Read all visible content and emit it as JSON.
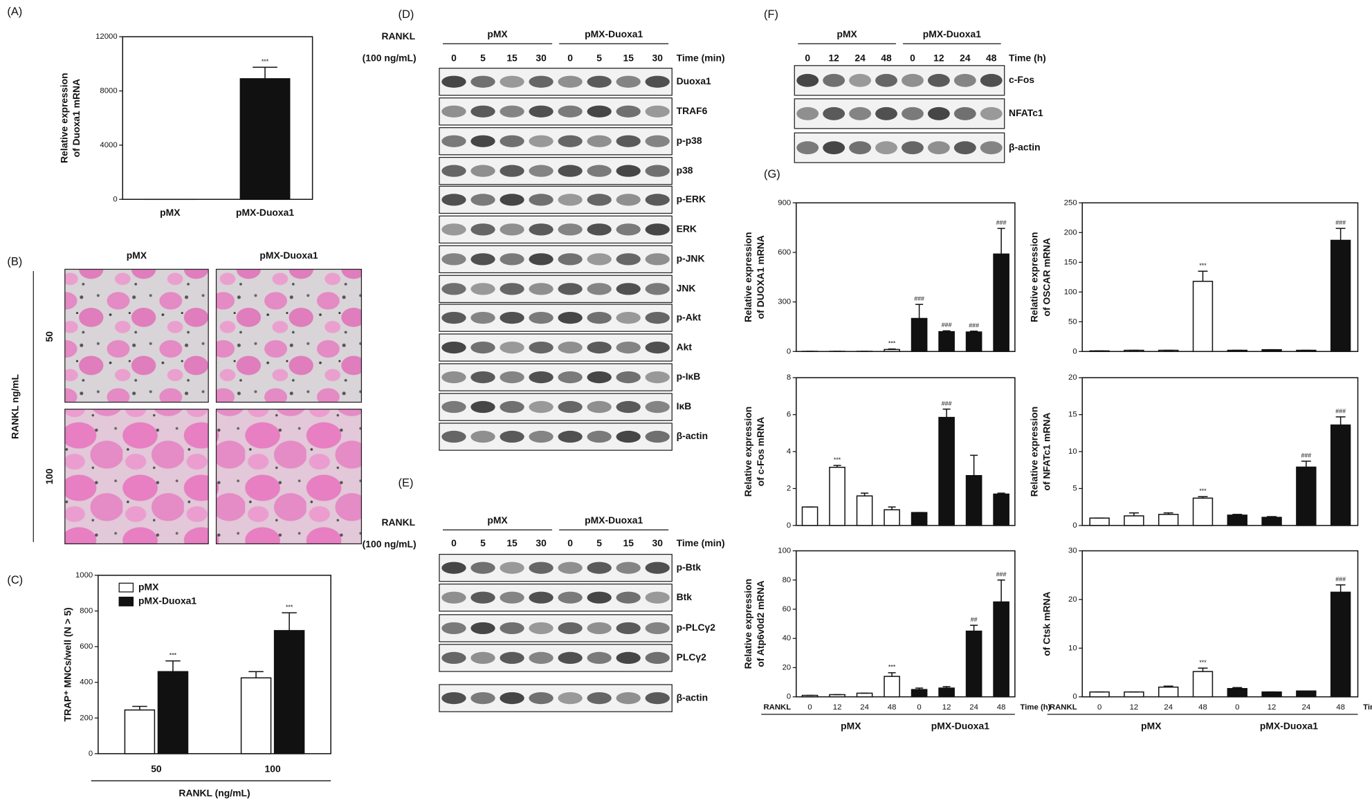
{
  "chart_data": [
    {
      "type": "bar",
      "panel": "(A)",
      "ylabel": [
        "Relative expression",
        "of Duoxa1 mRNA"
      ],
      "categories": [
        "pMX",
        "pMX-Duoxa1"
      ],
      "values": [
        1,
        8900
      ],
      "errors": [
        0,
        850
      ],
      "annotations": [
        null,
        "***"
      ],
      "color": "#111111",
      "ylim": [
        0,
        12000
      ],
      "yticks": [
        0,
        4000,
        8000,
        12000
      ]
    },
    {
      "type": "grouped_bar",
      "panel": "(C)",
      "ylabel": [
        "TRAP⁺ MNCs/well (N > 5)"
      ],
      "xlabel": "RANKL (ng/mL)",
      "categories": [
        "50",
        "100"
      ],
      "series": [
        {
          "name": "pMX",
          "color": "#ffffff",
          "values": [
            245,
            425
          ],
          "errors": [
            20,
            35
          ],
          "annotations": [
            null,
            null
          ]
        },
        {
          "name": "pMX-Duoxa1",
          "color": "#111111",
          "values": [
            460,
            690
          ],
          "errors": [
            60,
            100
          ],
          "annotations": [
            "***",
            "***"
          ]
        }
      ],
      "ylim": [
        0,
        1000
      ],
      "yticks": [
        0,
        200,
        400,
        600,
        800,
        1000
      ]
    },
    {
      "type": "bar",
      "ylabel": [
        "Relative expression",
        "of DUOXA1 mRNA"
      ],
      "series": [
        {
          "color": "#ffffff",
          "values": [
            1,
            1,
            1,
            12
          ],
          "errors": [
            0,
            0,
            0,
            3
          ],
          "annotations": [
            null,
            null,
            null,
            "***"
          ]
        },
        {
          "color": "#111111",
          "values": [
            200,
            120,
            118,
            590
          ],
          "errors": [
            85,
            5,
            5,
            155
          ],
          "annotations": [
            "###",
            "###",
            "###",
            "###"
          ]
        }
      ],
      "ylim": [
        0,
        900
      ],
      "yticks": [
        0,
        300,
        600,
        900
      ]
    },
    {
      "type": "bar",
      "ylabel": [
        "Relative expression",
        "of OSCAR mRNA"
      ],
      "series": [
        {
          "color": "#ffffff",
          "values": [
            1,
            2,
            2,
            118
          ],
          "errors": [
            0,
            0,
            0,
            17
          ],
          "annotations": [
            null,
            null,
            null,
            "***"
          ]
        },
        {
          "color": "#111111",
          "values": [
            2,
            3,
            2,
            187
          ],
          "errors": [
            0,
            0,
            0,
            20
          ],
          "annotations": [
            null,
            null,
            null,
            "###"
          ]
        }
      ],
      "ylim": [
        0,
        250
      ],
      "yticks": [
        0,
        50,
        100,
        150,
        200,
        250
      ]
    },
    {
      "type": "bar",
      "ylabel": [
        "Relative expression",
        "of c-Fos mRNA"
      ],
      "series": [
        {
          "color": "#ffffff",
          "values": [
            1,
            3.15,
            1.6,
            0.85
          ],
          "errors": [
            0,
            0.1,
            0.15,
            0.15
          ],
          "annotations": [
            null,
            "***",
            null,
            null
          ]
        },
        {
          "color": "#111111",
          "values": [
            0.7,
            5.85,
            2.7,
            1.7
          ],
          "errors": [
            0,
            0.45,
            1.1,
            0.05
          ],
          "annotations": [
            null,
            "###",
            null,
            null
          ]
        }
      ],
      "ylim": [
        0,
        8
      ],
      "yticks": [
        0,
        2,
        4,
        6,
        8
      ]
    },
    {
      "type": "bar",
      "ylabel": [
        "Relative expression",
        "of NFATc1 mRNA"
      ],
      "series": [
        {
          "color": "#ffffff",
          "values": [
            1,
            1.3,
            1.5,
            3.7
          ],
          "errors": [
            0,
            0.4,
            0.2,
            0.2
          ],
          "annotations": [
            null,
            null,
            null,
            "***"
          ]
        },
        {
          "color": "#111111",
          "values": [
            1.4,
            1.1,
            7.9,
            13.6
          ],
          "errors": [
            0.1,
            0.1,
            0.8,
            1.1
          ],
          "annotations": [
            null,
            null,
            "###",
            "###"
          ]
        }
      ],
      "ylim": [
        0,
        20
      ],
      "yticks": [
        0,
        5,
        10,
        15,
        20
      ]
    },
    {
      "type": "bar",
      "ylabel": [
        "Relative expression",
        "of Atp6v0d2 mRNA"
      ],
      "series": [
        {
          "color": "#ffffff",
          "values": [
            1,
            1.5,
            2.5,
            14
          ],
          "errors": [
            0,
            0,
            0,
            2.5
          ],
          "annotations": [
            null,
            null,
            null,
            "***"
          ]
        },
        {
          "color": "#111111",
          "values": [
            5,
            6,
            45,
            65
          ],
          "errors": [
            1,
            1,
            4,
            15
          ],
          "annotations": [
            null,
            null,
            "##",
            "###"
          ]
        }
      ],
      "ylim": [
        0,
        100
      ],
      "yticks": [
        0,
        20,
        40,
        60,
        80,
        100
      ]
    },
    {
      "type": "bar",
      "ylabel": [
        "of Ctsk mRNA"
      ],
      "series": [
        {
          "color": "#ffffff",
          "values": [
            1,
            1,
            2,
            5.2
          ],
          "errors": [
            0,
            0,
            0.2,
            0.7
          ],
          "annotations": [
            null,
            null,
            null,
            "***"
          ]
        },
        {
          "color": "#111111",
          "values": [
            1.7,
            1,
            1.2,
            21.5
          ],
          "errors": [
            0.2,
            0,
            0,
            1.5
          ],
          "annotations": [
            null,
            null,
            null,
            "###"
          ]
        }
      ],
      "ylim": [
        0,
        30
      ],
      "yticks": [
        0,
        10,
        20,
        30
      ]
    }
  ],
  "g_panel": "(G)",
  "g_axis": {
    "rankl": "RANKL",
    "categories": [
      "0",
      "12",
      "24",
      "48",
      "0",
      "12",
      "24",
      "48"
    ],
    "time_label": "Time (h)",
    "groups": [
      "pMX",
      "pMX-Duoxa1"
    ]
  },
  "micrographs": {
    "panel": "(B)",
    "columns": [
      "pMX",
      "pMX-Duoxa1"
    ],
    "rows": [
      "50",
      "100"
    ],
    "row_title": "RANKL ng/mL"
  },
  "blots": [
    {
      "panel": "(D)",
      "rankl": "RANKL",
      "dose": "(100 ng/mL)",
      "groups": [
        "pMX",
        "pMX-Duoxa1"
      ],
      "lanes": [
        "0",
        "5",
        "15",
        "30",
        "0",
        "5",
        "15",
        "30"
      ],
      "time_label": "Time (min)",
      "rows": [
        "Duoxa1",
        "TRAF6",
        "p-p38",
        "p38",
        "p-ERK",
        "ERK",
        "p-JNK",
        "JNK",
        "p-Akt",
        "Akt",
        "p-IκB",
        "IκB",
        "β-actin"
      ]
    },
    {
      "panel": "(E)",
      "rankl": "RANKL",
      "dose": "(100 ng/mL)",
      "groups": [
        "pMX",
        "pMX-Duoxa1"
      ],
      "lanes": [
        "0",
        "5",
        "15",
        "30",
        "0",
        "5",
        "15",
        "30"
      ],
      "time_label": "Time (min)",
      "rows": [
        "p-Btk",
        "Btk",
        "p-PLCγ2",
        "PLCγ2",
        "β-actin"
      ]
    },
    {
      "panel": "(F)",
      "groups": [
        "pMX",
        "pMX-Duoxa1"
      ],
      "lanes": [
        "0",
        "12",
        "24",
        "48",
        "0",
        "12",
        "24",
        "48"
      ],
      "time_label": "Time (h)",
      "rows": [
        "c-Fos",
        "NFATc1",
        "β-actin"
      ]
    }
  ]
}
